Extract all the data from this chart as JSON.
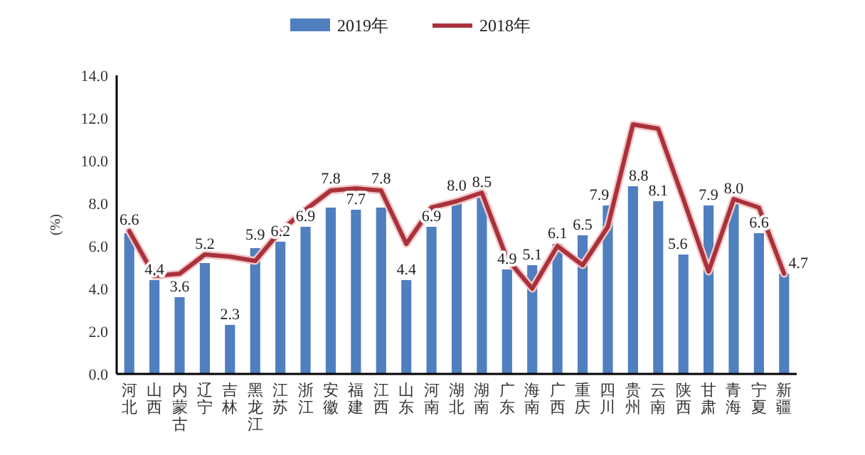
{
  "chart_data": {
    "type": "bar",
    "ylabel": "(%)",
    "legend": "top",
    "categories": [
      "河北",
      "山西",
      "内蒙古",
      "辽宁",
      "吉林",
      "黑龙江",
      "江苏",
      "浙江",
      "安徽",
      "福建",
      "江西",
      "山东",
      "河南",
      "湖北",
      "湖南",
      "广东",
      "海南",
      "广西",
      "重庆",
      "四川",
      "贵州",
      "云南",
      "陕西",
      "甘肃",
      "青海",
      "宁夏",
      "新疆"
    ],
    "series": [
      {
        "name": "2019年",
        "type": "bar",
        "color": "#4f7fbf",
        "values": [
          6.6,
          4.4,
          3.6,
          5.2,
          2.3,
          5.9,
          6.2,
          6.9,
          7.8,
          7.7,
          7.8,
          4.4,
          6.9,
          8.0,
          8.5,
          4.9,
          5.1,
          6.1,
          6.5,
          7.9,
          8.8,
          8.1,
          5.6,
          7.9,
          8.0,
          6.6,
          4.7
        ],
        "value_labels": [
          "6.6",
          "4.4",
          "3.6",
          "5.2",
          "2.3",
          "5.9",
          "6.2",
          "6.9",
          "7.8",
          "7.7",
          "7.8",
          "4.4",
          "6.9",
          "8.0",
          "8.5",
          "4.9",
          "5.1",
          "6.1",
          "6.5",
          "7.9",
          "8.8",
          "8.1",
          "5.6",
          "7.9",
          "8.0",
          "6.6",
          "4.7"
        ]
      },
      {
        "name": "2018年",
        "type": "line",
        "color": "#a8323c",
        "values": [
          6.7,
          4.6,
          4.7,
          5.6,
          5.5,
          5.3,
          6.7,
          7.7,
          8.6,
          8.7,
          8.6,
          6.1,
          7.8,
          8.1,
          8.5,
          5.4,
          4.0,
          6.0,
          5.1,
          6.9,
          11.7,
          11.5,
          8.2,
          4.8,
          8.2,
          7.8,
          4.7
        ]
      }
    ],
    "ylim": [
      0,
      14
    ],
    "yticks": [
      {
        "value": 0,
        "label": "0.0"
      },
      {
        "value": 2,
        "label": "2.0"
      },
      {
        "value": 4,
        "label": "4.0"
      },
      {
        "value": 6,
        "label": "6.0"
      },
      {
        "value": 8,
        "label": "8.0"
      },
      {
        "value": 10,
        "label": "10.0"
      },
      {
        "value": 12,
        "label": "12.0"
      },
      {
        "value": 14,
        "label": "14.0"
      }
    ]
  }
}
